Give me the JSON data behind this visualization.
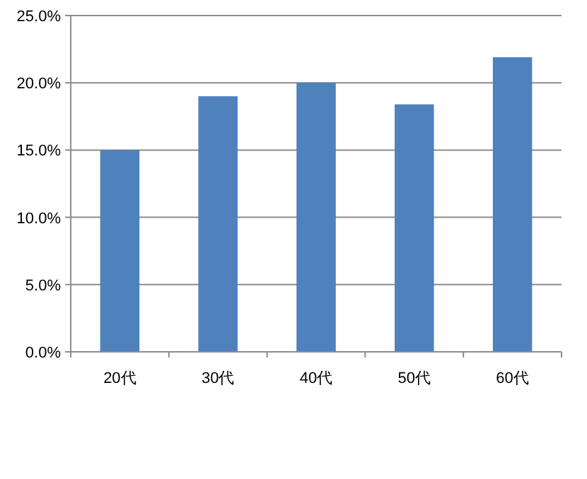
{
  "chart_data": {
    "type": "bar",
    "categories": [
      "20代",
      "30代",
      "40代",
      "50代",
      "60代"
    ],
    "values": [
      15.0,
      19.0,
      20.0,
      18.4,
      21.9
    ],
    "color": "#4f81bd",
    "ylim": [
      0,
      25
    ],
    "yticks": [
      {
        "value": 0,
        "label": "0.0%"
      },
      {
        "value": 5,
        "label": "5.0%"
      },
      {
        "value": 10,
        "label": "10.0%"
      },
      {
        "value": 15,
        "label": "15.0%"
      },
      {
        "value": 20,
        "label": "20.0%"
      },
      {
        "value": 25,
        "label": "25.0%"
      }
    ],
    "grid": "y"
  }
}
